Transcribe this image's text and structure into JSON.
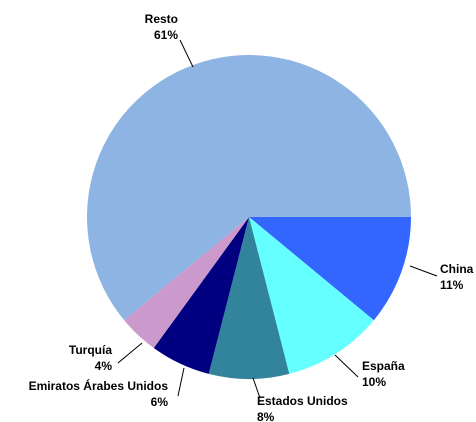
{
  "chart_data": {
    "type": "pie",
    "categories": [
      "China",
      "España",
      "Estados Unidos",
      "Emiratos Árabes Unidos",
      "Turquía",
      "Resto"
    ],
    "values": [
      11,
      10,
      8,
      6,
      4,
      61
    ],
    "value_labels": [
      "11%",
      "10%",
      "8%",
      "6%",
      "4%",
      "61%"
    ],
    "colors": [
      "#3366FF",
      "#66FFFF",
      "#31849B",
      "#000080",
      "#CC99CC",
      "#8EB4E3"
    ]
  }
}
